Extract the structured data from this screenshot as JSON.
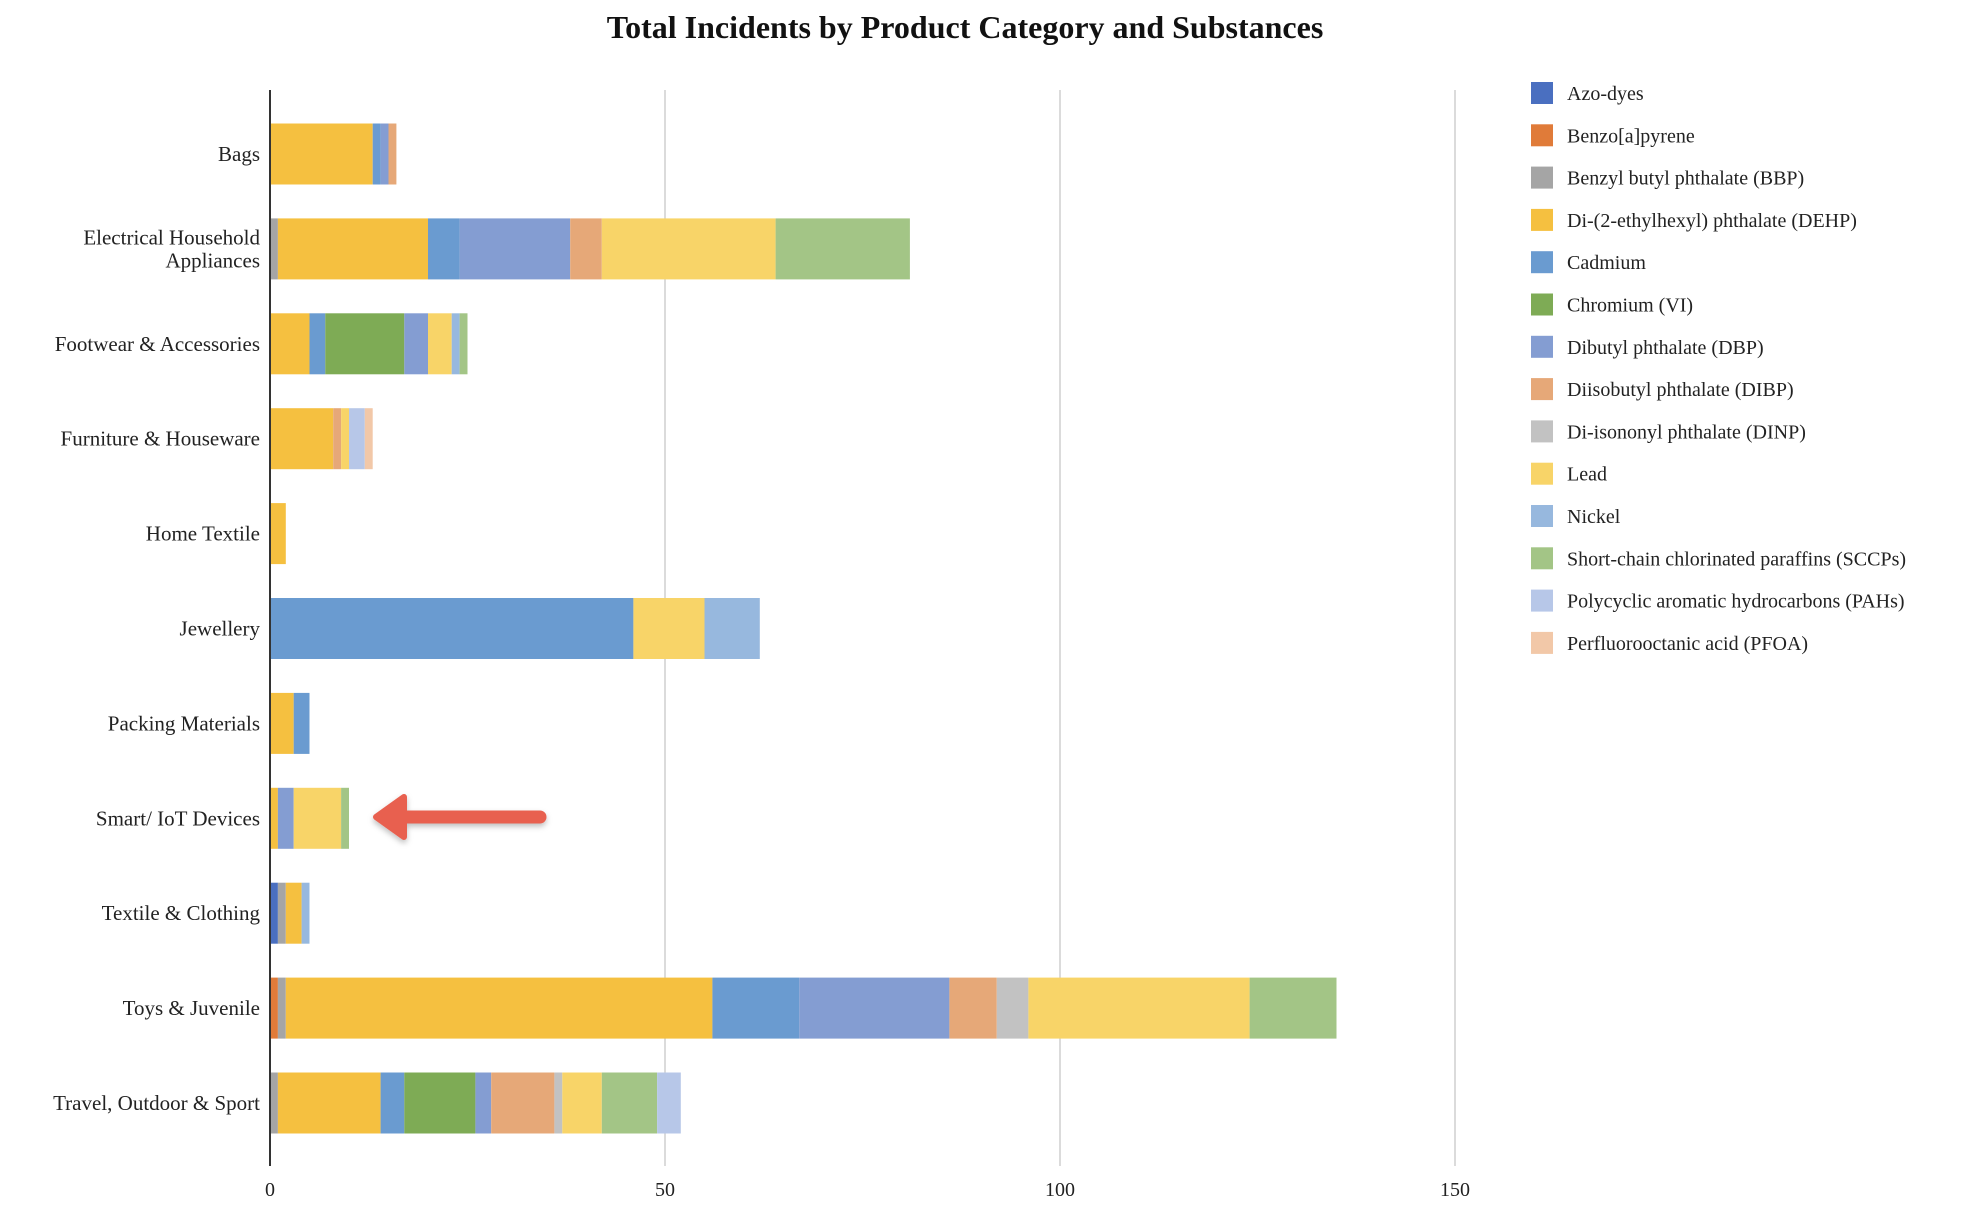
{
  "chart_data": {
    "type": "bar",
    "orientation": "horizontal",
    "stacked": true,
    "title": "Total Incidents by Product Category and Substances",
    "xlabel": "",
    "ylabel": "",
    "xlim": [
      0,
      150
    ],
    "x_ticks": [
      0,
      50,
      100,
      150
    ],
    "grid": "vertical",
    "legend_position": "right",
    "categories": [
      "Bags",
      "Electrical Household Appliances",
      "Footwear & Accessories",
      "Furniture & Houseware",
      "Home Textile",
      "Jewellery",
      "Packing Materials",
      "Smart/ IoT Devices",
      "Textile & Clothing",
      "Toys & Juvenile",
      "Travel, Outdoor & Sport"
    ],
    "category_lines": [
      [
        "Bags"
      ],
      [
        "Electrical Household",
        "Appliances"
      ],
      [
        "Footwear & Accessories"
      ],
      [
        "Furniture & Houseware"
      ],
      [
        "Home Textile"
      ],
      [
        "Jewellery"
      ],
      [
        "Packing Materials"
      ],
      [
        "Smart/ IoT Devices"
      ],
      [
        "Textile & Clothing"
      ],
      [
        "Toys & Juvenile"
      ],
      [
        "Travel, Outdoor & Sport"
      ]
    ],
    "series": [
      {
        "name": "Azo-dyes",
        "color": "#4a6fc0",
        "values": [
          0,
          0,
          0,
          0,
          0,
          0,
          0,
          0,
          1,
          0,
          0
        ]
      },
      {
        "name": "Benzo[a]pyrene",
        "color": "#e07b39",
        "values": [
          0,
          0,
          0,
          0,
          0,
          0,
          0,
          0,
          0,
          1,
          0
        ]
      },
      {
        "name": "Benzyl butyl phthalate (BBP)",
        "color": "#a5a5a5",
        "values": [
          0,
          1,
          0,
          0,
          0,
          0,
          0,
          0,
          1,
          1,
          1
        ]
      },
      {
        "name": "Di-(2-ethylhexyl) phthalate (DEHP)",
        "color": "#f5c040",
        "values": [
          13,
          19,
          5,
          8,
          2,
          0,
          3,
          1,
          2,
          54,
          13
        ]
      },
      {
        "name": "Cadmium",
        "color": "#6a9bd0",
        "values": [
          1,
          4,
          2,
          0,
          0,
          46,
          2,
          0,
          0,
          11,
          3
        ]
      },
      {
        "name": "Chromium (VI)",
        "color": "#7eab55",
        "values": [
          0,
          0,
          10,
          0,
          0,
          0,
          0,
          0,
          0,
          0,
          9
        ]
      },
      {
        "name": "Dibutyl phthalate (DBP)",
        "color": "#849dd2",
        "values": [
          1,
          14,
          3,
          0,
          0,
          0,
          0,
          2,
          0,
          19,
          2
        ]
      },
      {
        "name": "Diisobutyl phthalate (DIBP)",
        "color": "#e6a878",
        "values": [
          1,
          4,
          0,
          1,
          0,
          0,
          0,
          0,
          0,
          6,
          8
        ]
      },
      {
        "name": "Di-isononyl phthalate (DINP)",
        "color": "#c2c2c2",
        "values": [
          0,
          0,
          0,
          0,
          0,
          0,
          0,
          0,
          0,
          4,
          1
        ]
      },
      {
        "name": "Lead",
        "color": "#f8d468",
        "values": [
          0,
          22,
          3,
          1,
          0,
          9,
          0,
          6,
          0,
          28,
          5
        ]
      },
      {
        "name": "Nickel",
        "color": "#97b8de",
        "values": [
          0,
          0,
          1,
          0,
          0,
          7,
          0,
          0,
          1,
          0,
          0
        ]
      },
      {
        "name": "Short-chain chlorinated paraffins (SCCPs)",
        "color": "#a3c586",
        "values": [
          0,
          17,
          1,
          0,
          0,
          0,
          0,
          1,
          0,
          11,
          7
        ]
      },
      {
        "name": " Polycyclic aromatic hydrocarbons (PAHs)",
        "color": "#b7c7e8",
        "values": [
          0,
          0,
          0,
          2,
          0,
          0,
          0,
          0,
          0,
          0,
          3
        ]
      },
      {
        "name": "Perfluorooctanic acid (PFOA)",
        "color": "#f2c8a8",
        "values": [
          0,
          0,
          0,
          1,
          0,
          0,
          0,
          0,
          0,
          0,
          0
        ]
      }
    ],
    "annotations": [
      {
        "type": "arrow",
        "color": "#e8614f",
        "points_to": "Smart/ IoT Devices"
      }
    ]
  }
}
